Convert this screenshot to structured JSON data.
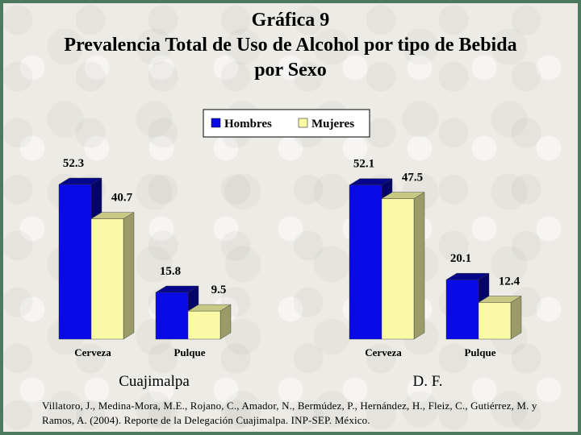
{
  "title": {
    "line1": "Gráfica 9",
    "line2": "Prevalencia Total de Uso de Alcohol por tipo de Bebida",
    "line3": "por Sexo"
  },
  "legend": [
    "Hombres",
    "Mujeres"
  ],
  "colors": {
    "hombres": "#0a0ae6",
    "mujeres": "#fafaa6",
    "background": "#ecebe6",
    "border": "#4d7a5f"
  },
  "chart_data": [
    {
      "type": "bar",
      "panel_label": "Cuajimalpa",
      "categories": [
        "Cerveza",
        "Pulque"
      ],
      "series": [
        {
          "name": "Hombres",
          "values": [
            52.3,
            15.8
          ]
        },
        {
          "name": "Mujeres",
          "values": [
            40.7,
            9.5
          ]
        }
      ],
      "ylim": [
        0,
        52.3
      ]
    },
    {
      "type": "bar",
      "panel_label": "D. F.",
      "categories": [
        "Cerveza",
        "Pulque"
      ],
      "series": [
        {
          "name": "Hombres",
          "values": [
            52.1,
            20.1
          ]
        },
        {
          "name": "Mujeres",
          "values": [
            47.5,
            12.4
          ]
        }
      ],
      "ylim": [
        0,
        52.3
      ]
    }
  ],
  "source": "Villatoro, J., Medina-Mora, M.E., Rojano, C., Amador, N., Bermúdez, P., Hernández, H., Fleiz, C., Gutiérrez, M. y Ramos, A. (2004). Reporte de la Delegación Cuajimalpa. INP-SEP. México."
}
